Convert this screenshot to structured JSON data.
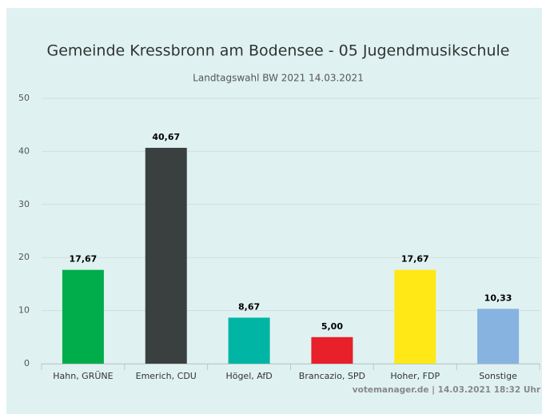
{
  "chart_data": {
    "type": "bar",
    "title": "Gemeinde Kressbronn am Bodensee - 05 Jugendmusikschule",
    "subtitle": "Landtagswahl BW 2021 14.03.2021",
    "credits": "votemanager.de | 14.03.2021 18:32 Uhr",
    "categories": [
      "Hahn, GRÜNE",
      "Emerich, CDU",
      "Högel, AfD",
      "Brancazio, SPD",
      "Hoher, FDP",
      "Sonstige"
    ],
    "values": [
      17.67,
      40.67,
      8.67,
      5.0,
      17.67,
      10.33
    ],
    "value_labels": [
      "17,67",
      "40,67",
      "8,67",
      "5,00",
      "17,67",
      "10,33"
    ],
    "colors": [
      "#00ad4a",
      "#3a4040",
      "#00b5a4",
      "#e8202a",
      "#ffe816",
      "#87b3e0"
    ],
    "ylim": [
      0,
      50
    ],
    "yticks": [
      0,
      10,
      20,
      30,
      40,
      50
    ],
    "grid": true
  }
}
